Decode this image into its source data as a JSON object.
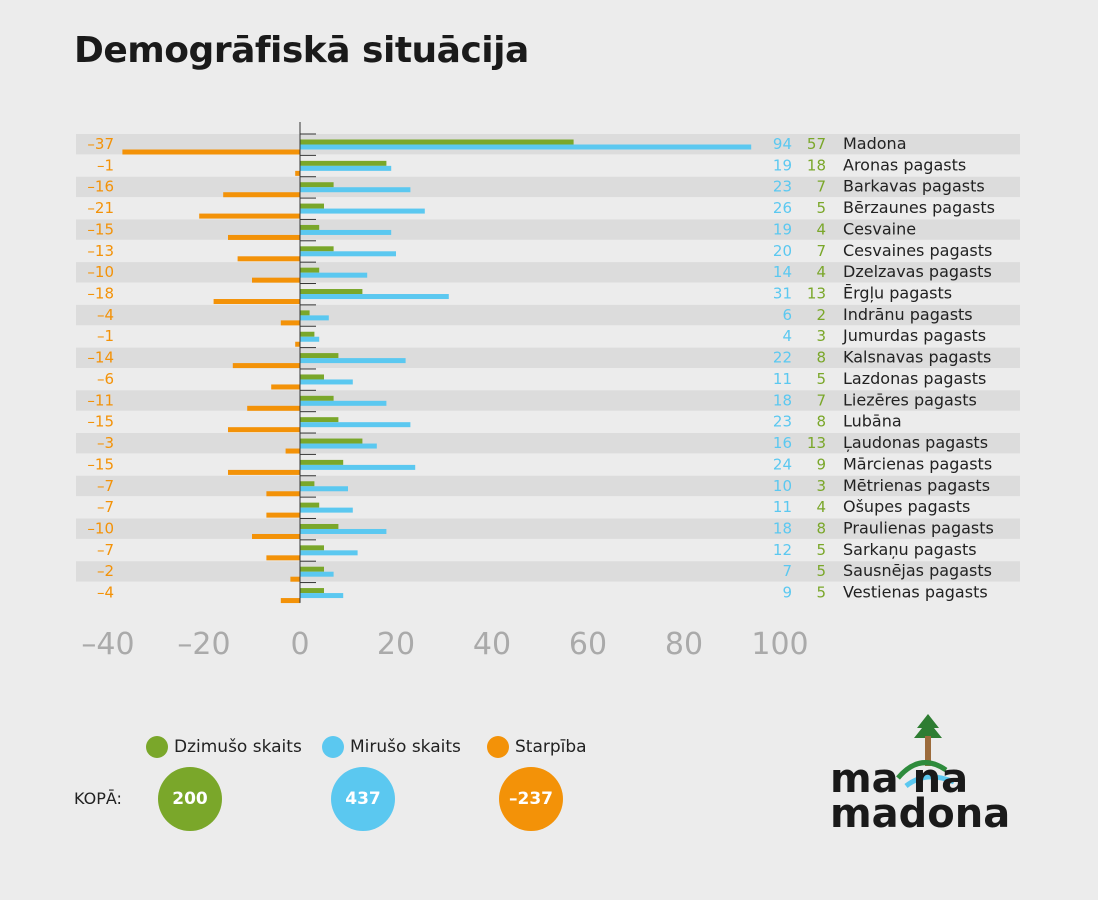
{
  "title": "Demogrāfiskā situācija",
  "colors": {
    "births": "#7aa72a",
    "deaths": "#5bc8f0",
    "diff": "#f39208",
    "stripe": "#dcdcdc",
    "axis": "#aaaaaa"
  },
  "chart_data": {
    "type": "bar",
    "orientation": "horizontal",
    "xlim": [
      -40,
      100
    ],
    "xticks": [
      "-40",
      "-20",
      "0",
      "20",
      "40",
      "60",
      "80",
      "100"
    ],
    "categories": [
      "Madona",
      "Aronas pagasts",
      "Barkavas pagasts",
      "Bērzaunes pagasts",
      "Cesvaine",
      "Cesvaines pagasts",
      "Dzelzavas pagasts",
      "Ērgļu pagasts",
      "Indrānu pagasts",
      "Jumurdas pagasts",
      "Kalsnavas pagasts",
      "Lazdonas pagasts",
      "Liezēres pagasts",
      "Lubāna",
      "Ļaudonas pagasts",
      "Mārcienas pagasts",
      "Mētrienas pagasts",
      "Ošupes pagasts",
      "Praulienas pagasts",
      "Sarkaņu pagasts",
      "Sausnējas pagasts",
      "Vestienas pagasts"
    ],
    "series": [
      {
        "name": "Dzimušo skaits",
        "values": [
          57,
          18,
          7,
          5,
          4,
          7,
          4,
          13,
          2,
          3,
          8,
          5,
          7,
          8,
          13,
          9,
          3,
          4,
          8,
          5,
          5,
          5
        ]
      },
      {
        "name": "Mirušo skaits",
        "values": [
          94,
          19,
          23,
          26,
          19,
          20,
          14,
          31,
          6,
          4,
          22,
          11,
          18,
          23,
          16,
          24,
          10,
          11,
          18,
          12,
          7,
          9
        ]
      },
      {
        "name": "Starpība",
        "values": [
          -37,
          -1,
          -16,
          -21,
          -15,
          -13,
          -10,
          -18,
          -4,
          -1,
          -14,
          -6,
          -11,
          -15,
          -3,
          -15,
          -7,
          -7,
          -10,
          -7,
          -2,
          -4
        ]
      }
    ]
  },
  "totals": {
    "label": "KOPĀ:",
    "births": "200",
    "deaths": "437",
    "diff": "–237"
  },
  "logo": {
    "line1": "ma  na",
    "line2": "madona"
  }
}
